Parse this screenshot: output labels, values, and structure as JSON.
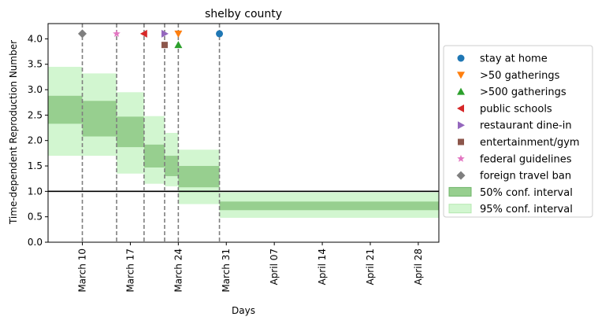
{
  "chart_data": {
    "type": "area",
    "title": "shelby county",
    "xlabel": "Days",
    "ylabel": "Time-dependent Reproduction Number",
    "grid": false,
    "legend_placement": "right",
    "xlim": [
      "2020-03-05",
      "2020-05-01"
    ],
    "ylim": [
      0,
      4.3
    ],
    "x_ticks": [
      {
        "date": "2020-03-10",
        "label": "March 10"
      },
      {
        "date": "2020-03-17",
        "label": "March 17"
      },
      {
        "date": "2020-03-24",
        "label": "March 24"
      },
      {
        "date": "2020-03-31",
        "label": "March 31"
      },
      {
        "date": "2020-04-07",
        "label": "April 07"
      },
      {
        "date": "2020-04-14",
        "label": "April 14"
      },
      {
        "date": "2020-04-21",
        "label": "April 21"
      },
      {
        "date": "2020-04-28",
        "label": "April 28"
      }
    ],
    "y_ticks": [
      {
        "value": 0.0,
        "label": "0.0"
      },
      {
        "value": 0.5,
        "label": "0.5"
      },
      {
        "value": 1.0,
        "label": "1.0"
      },
      {
        "value": 1.5,
        "label": "1.5"
      },
      {
        "value": 2.0,
        "label": "2.0"
      },
      {
        "value": 2.5,
        "label": "2.5"
      },
      {
        "value": 3.0,
        "label": "3.0"
      },
      {
        "value": 3.5,
        "label": "3.5"
      },
      {
        "value": 4.0,
        "label": "4.0"
      }
    ],
    "reference_line": {
      "y": 1.0,
      "color": "#000000"
    },
    "intervals": [
      {
        "start": "2020-03-05",
        "end": "2020-03-10",
        "ci50": [
          2.33,
          2.88
        ],
        "ci95": [
          1.7,
          3.45
        ]
      },
      {
        "start": "2020-03-10",
        "end": "2020-03-15",
        "ci50": [
          2.08,
          2.78
        ],
        "ci95": [
          1.7,
          3.32
        ]
      },
      {
        "start": "2020-03-15",
        "end": "2020-03-19",
        "ci50": [
          1.87,
          2.47
        ],
        "ci95": [
          1.35,
          2.95
        ]
      },
      {
        "start": "2020-03-19",
        "end": "2020-03-22",
        "ci50": [
          1.47,
          1.92
        ],
        "ci95": [
          1.15,
          2.48
        ]
      },
      {
        "start": "2020-03-22",
        "end": "2020-03-24",
        "ci50": [
          1.3,
          1.7
        ],
        "ci95": [
          1.1,
          2.15
        ]
      },
      {
        "start": "2020-03-24",
        "end": "2020-03-30",
        "ci50": [
          1.08,
          1.5
        ],
        "ci95": [
          0.75,
          1.82
        ]
      },
      {
        "start": "2020-03-30",
        "end": "2020-05-01",
        "ci50": [
          0.63,
          0.8
        ],
        "ci95": [
          0.48,
          0.98
        ]
      }
    ],
    "events": [
      {
        "name": "stay at home",
        "date": "2020-03-30",
        "y": 4.1,
        "marker": "circle",
        "color": "#1f77b4"
      },
      {
        "name": ">50 gatherings",
        "date": "2020-03-24",
        "y": 4.1,
        "marker": "triangle-down",
        "color": "#ff7f0e"
      },
      {
        "name": ">500 gatherings",
        "date": "2020-03-24",
        "y": 3.88,
        "marker": "triangle-up",
        "color": "#2ca02c"
      },
      {
        "name": "public schools",
        "date": "2020-03-19",
        "y": 4.1,
        "marker": "triangle-left",
        "color": "#d62728"
      },
      {
        "name": "restaurant dine-in",
        "date": "2020-03-22",
        "y": 4.1,
        "marker": "triangle-right",
        "color": "#9467bd"
      },
      {
        "name": "entertainment/gym",
        "date": "2020-03-22",
        "y": 3.88,
        "marker": "square",
        "color": "#8c564b"
      },
      {
        "name": "federal guidelines",
        "date": "2020-03-15",
        "y": 4.1,
        "marker": "star",
        "color": "#e377c2"
      },
      {
        "name": "foreign travel ban",
        "date": "2020-03-10",
        "y": 4.1,
        "marker": "diamond",
        "color": "#7f7f7f"
      }
    ],
    "event_line_dates": [
      "2020-03-10",
      "2020-03-15",
      "2020-03-19",
      "2020-03-22",
      "2020-03-24",
      "2020-03-30"
    ],
    "legend": [
      {
        "label": "stay at home",
        "kind": "marker",
        "marker": "circle",
        "color": "#1f77b4"
      },
      {
        "label": ">50 gatherings",
        "kind": "marker",
        "marker": "triangle-down",
        "color": "#ff7f0e"
      },
      {
        "label": ">500 gatherings",
        "kind": "marker",
        "marker": "triangle-up",
        "color": "#2ca02c"
      },
      {
        "label": "public schools",
        "kind": "marker",
        "marker": "triangle-left",
        "color": "#d62728"
      },
      {
        "label": "restaurant dine-in",
        "kind": "marker",
        "marker": "triangle-right",
        "color": "#9467bd"
      },
      {
        "label": "entertainment/gym",
        "kind": "marker",
        "marker": "square",
        "color": "#8c564b"
      },
      {
        "label": "federal guidelines",
        "kind": "marker",
        "marker": "star",
        "color": "#e377c2"
      },
      {
        "label": "foreign travel ban",
        "kind": "marker",
        "marker": "diamond",
        "color": "#7f7f7f"
      },
      {
        "label": "50% conf. interval",
        "kind": "patch",
        "color": "#97cf8f"
      },
      {
        "label": "95% conf. interval",
        "kind": "patch",
        "color": "#d2f6d0"
      }
    ],
    "colors": {
      "ci50": "#97cf8f",
      "ci50_edge": "#6fb469",
      "ci95": "#d2f6d0",
      "event_line": "#7f7f7f"
    }
  }
}
